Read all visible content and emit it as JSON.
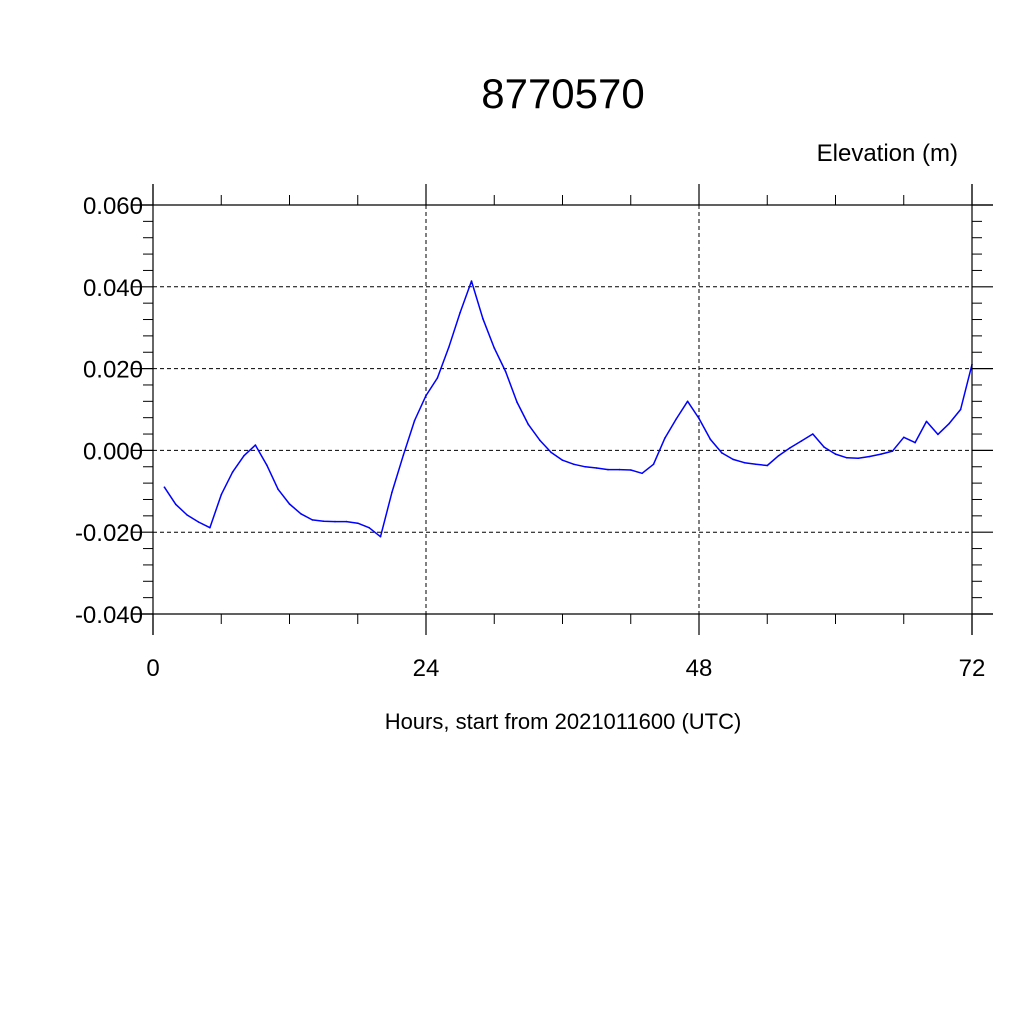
{
  "chart_data": {
    "type": "line",
    "title": "8770570",
    "ylabel": "Elevation (m)",
    "xlabel": "Hours, start from 2021011600 (UTC)",
    "xlim": [
      0,
      72
    ],
    "ylim": [
      -0.04,
      0.06
    ],
    "x_ticks": [
      0,
      24,
      48,
      72
    ],
    "x_tick_labels": [
      "0",
      "24",
      "48",
      "72"
    ],
    "y_ticks": [
      -0.04,
      -0.02,
      0.0,
      0.02,
      0.04,
      0.06
    ],
    "y_tick_labels": [
      "-0.040",
      "-0.020",
      "0.000",
      "0.020",
      "0.040",
      "0.060"
    ],
    "grid": true,
    "colors": {
      "series": "#0000ff",
      "axis": "#000000"
    },
    "series": [
      {
        "x": [
          1,
          2,
          3,
          4,
          5,
          6,
          7,
          8,
          9,
          10,
          11,
          12,
          13,
          14,
          15,
          16,
          17,
          18,
          19,
          20,
          21,
          22,
          23,
          24,
          25,
          26,
          27,
          28,
          29,
          30,
          31,
          32,
          33,
          34,
          35,
          36,
          37,
          38,
          39,
          40,
          41,
          42,
          43,
          44,
          45,
          46,
          47,
          48,
          49,
          50,
          51,
          52,
          53,
          54,
          55,
          56,
          57,
          58,
          59,
          60,
          61,
          62,
          63,
          64,
          65,
          66,
          67,
          68,
          69,
          70,
          71,
          72
        ],
        "values": [
          -0.009,
          -0.0132,
          -0.0158,
          -0.0175,
          -0.0189,
          -0.0108,
          -0.0053,
          -0.0013,
          0.0013,
          -0.0036,
          -0.0095,
          -0.0131,
          -0.0155,
          -0.017,
          -0.0173,
          -0.0174,
          -0.0174,
          -0.0178,
          -0.0189,
          -0.0211,
          -0.0103,
          -0.0012,
          0.0073,
          0.0134,
          0.0177,
          0.0252,
          0.0337,
          0.0414,
          0.0322,
          0.025,
          0.0193,
          0.0118,
          0.0063,
          0.0025,
          -0.0005,
          -0.0024,
          -0.0034,
          -0.004,
          -0.0043,
          -0.0047,
          -0.0047,
          -0.0048,
          -0.0056,
          -0.0034,
          0.003,
          0.0077,
          0.012,
          0.0078,
          0.0027,
          -0.0006,
          -0.0022,
          -0.003,
          -0.0034,
          -0.0037,
          -0.0013,
          0.0006,
          0.0023,
          0.004,
          0.0008,
          -0.0009,
          -0.0018,
          -0.0019,
          -0.0015,
          -0.0009,
          -0.0002,
          0.0032,
          0.0019,
          0.0071,
          0.0039,
          0.0066,
          0.01,
          0.021
        ]
      }
    ]
  }
}
